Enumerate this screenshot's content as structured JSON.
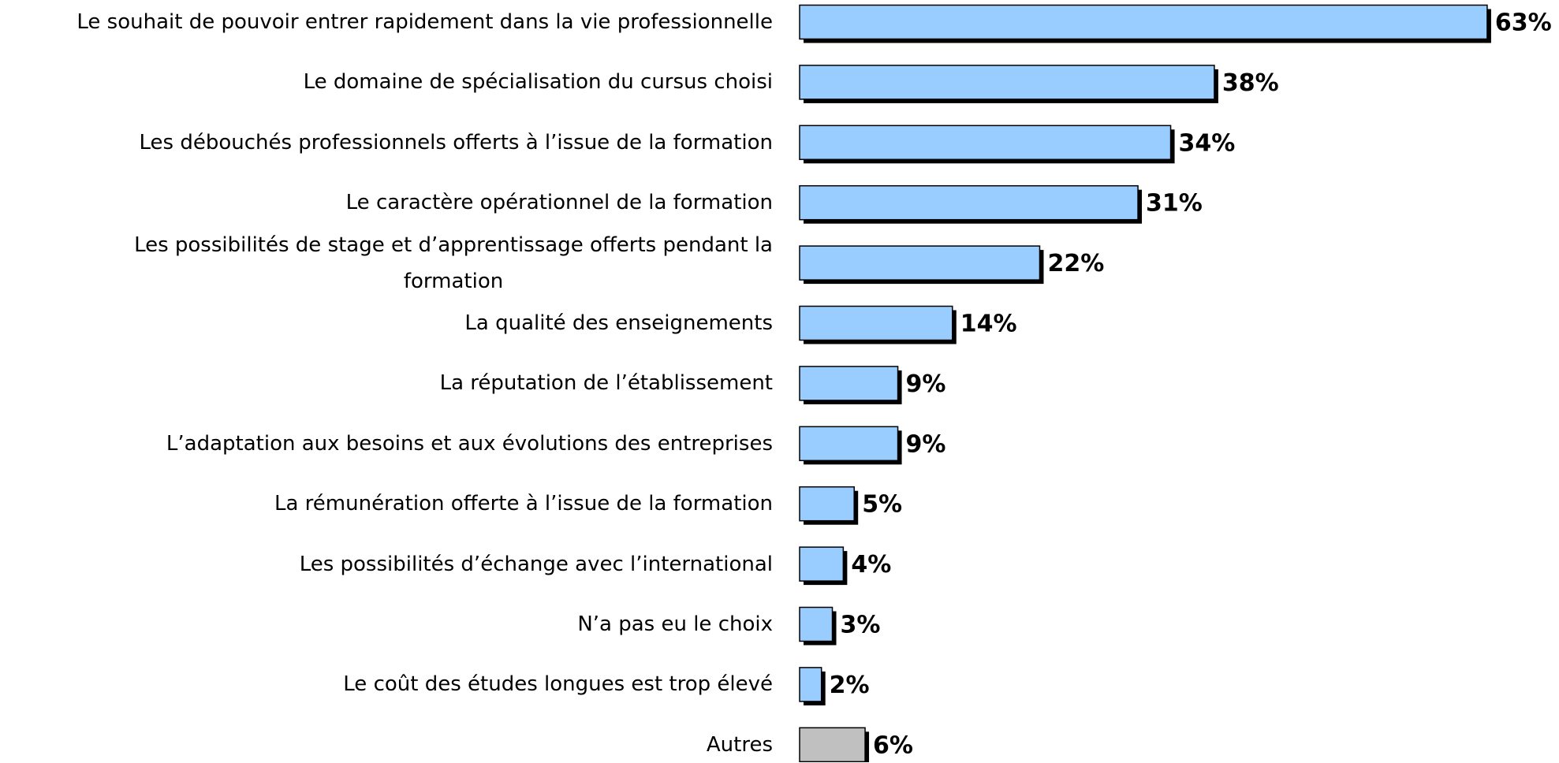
{
  "chart_data": {
    "type": "barh",
    "categories": [
      "Le souhait de pouvoir entrer rapidement dans la vie professionnelle",
      "Le domaine de spécialisation du cursus choisi",
      "Les débouchés professionnels offerts à l’issue de la formation",
      "Le caractère opérationnel de la formation",
      "Les possibilités de stage et d’apprentissage offerts pendant la\nformation",
      "La qualité des enseignements",
      "La réputation de l’établissement",
      "L’adaptation aux besoins et aux évolutions des entreprises",
      "La rémunération offerte à l’issue de la formation",
      "Les possibilités d’échange avec l’international",
      "N’a pas eu le choix",
      "Le coût des études longues est trop élevé",
      "Autres"
    ],
    "values": [
      63,
      38,
      34,
      31,
      22,
      14,
      9,
      9,
      5,
      4,
      3,
      2,
      6
    ],
    "value_labels": [
      "63%",
      "38%",
      "34%",
      "31%",
      "22%",
      "14%",
      "9%",
      "9%",
      "5%",
      "4%",
      "3%",
      "2%",
      "6%"
    ],
    "colors": [
      "#99ccff",
      "#99ccff",
      "#99ccff",
      "#99ccff",
      "#99ccff",
      "#99ccff",
      "#99ccff",
      "#99ccff",
      "#99ccff",
      "#99ccff",
      "#99ccff",
      "#99ccff",
      "#c0c0c0"
    ]
  }
}
